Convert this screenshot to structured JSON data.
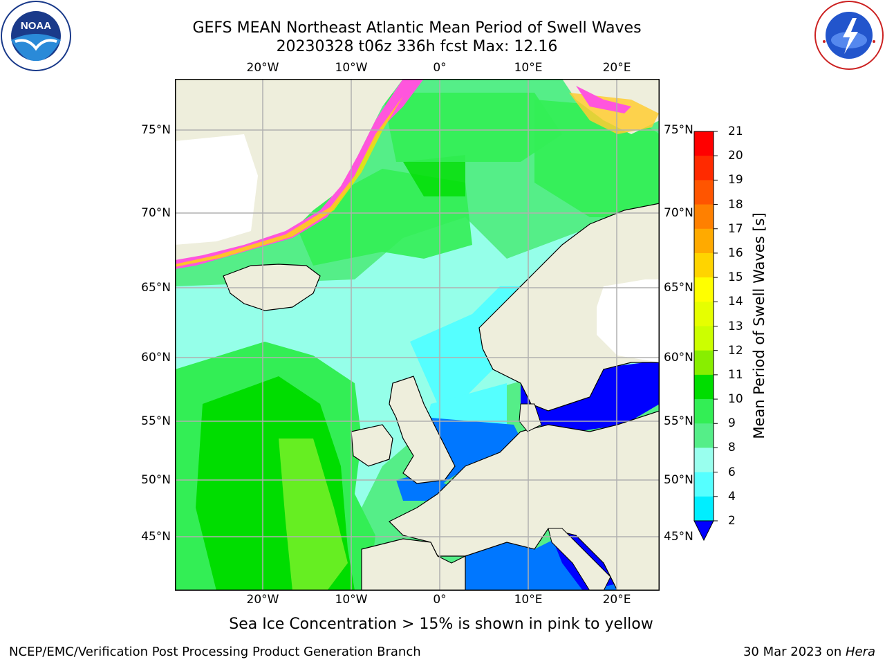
{
  "title": {
    "line1": "GEFS MEAN Northeast Atlantic Mean Period of Swell Waves",
    "line2": "20230328 t06z 336h fcst   Max: 12.16"
  },
  "logos": {
    "left": {
      "icon": "noaa-logo",
      "text_top": "NATIONAL OCEANIC AND ATMOSPHERIC ADMINISTRATION",
      "text_bottom": "U.S. DEPARTMENT OF COMMERCE",
      "center": "NOAA"
    },
    "right": {
      "icon": "nws-logo",
      "text": "NATIONAL WEATHER SERVICE"
    }
  },
  "map": {
    "lon_labels": [
      "20°W",
      "10°W",
      "0°",
      "10°E",
      "20°E"
    ],
    "lat_labels": [
      "75°N",
      "70°N",
      "65°N",
      "60°N",
      "55°N",
      "50°N",
      "45°N"
    ],
    "colors": {
      "land": "#eeeedc",
      "ice_free_land_white": "#ffffff",
      "grid": "#b0b0b0",
      "coast": "#000000"
    }
  },
  "colorbar": {
    "label": "Mean Period of Swell Waves [s]",
    "ticks": [
      "21",
      "20",
      "19",
      "18",
      "17",
      "16",
      "15",
      "14",
      "13",
      "12",
      "11",
      "10",
      "9",
      "8",
      "6",
      "4",
      "2"
    ],
    "colors_top_to_bottom": [
      "#ff0000",
      "#ff2a00",
      "#ff5500",
      "#ff8000",
      "#ffaa00",
      "#ffd400",
      "#ffff00",
      "#e6ff00",
      "#ccff00",
      "#88ee00",
      "#00dd00",
      "#33ee55",
      "#55ee88",
      "#99ffee",
      "#55ffff",
      "#00eeff",
      "#0077ff"
    ],
    "extend_color": "#0000ff"
  },
  "note": "Sea Ice Concentration > 15% is shown in pink to yellow",
  "footer": {
    "left": "NCEP/EMC/Verification Post Processing Product Generation Branch",
    "right_date": "30 Mar 2023 on ",
    "right_machine": "Hera"
  }
}
